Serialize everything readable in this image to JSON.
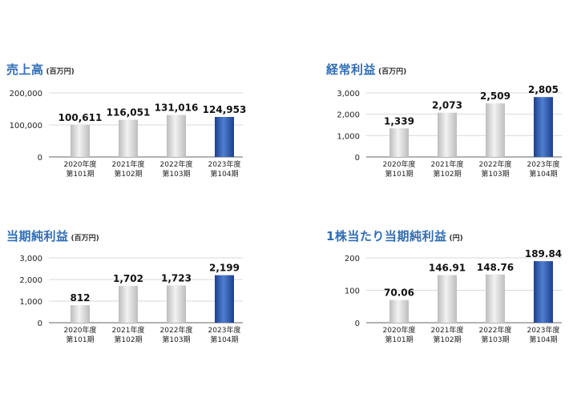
{
  "colors": {
    "title": "#2f6db5",
    "bar_gray_light": "#f2f2f2",
    "bar_gray_dark": "#bdbdbd",
    "bar_blue_light": "#4f7fd0",
    "bar_blue_dark": "#1d3f8e",
    "axis": "#666666",
    "grid": "#d9d9d9"
  },
  "chart_data": [
    {
      "type": "bar",
      "title": "売上高",
      "unit": "(百万円)",
      "categories": [
        "2020年度\n第101期",
        "2021年度\n第102期",
        "2022年度\n第103期",
        "2023年度\n第104期"
      ],
      "values": [
        100611,
        116051,
        131016,
        124953
      ],
      "value_labels": [
        "100,611",
        "116,051",
        "131,016",
        "124,953"
      ],
      "highlight_index": 3,
      "ylim": [
        0,
        200000
      ],
      "yticks": [
        0,
        100000,
        200000
      ],
      "ytick_labels": [
        "0",
        "100,000",
        "200,000"
      ],
      "grid": true
    },
    {
      "type": "bar",
      "title": "経常利益",
      "unit": "(百万円)",
      "categories": [
        "2020年度\n第101期",
        "2021年度\n第102期",
        "2022年度\n第103期",
        "2023年度\n第104期"
      ],
      "values": [
        1339,
        2073,
        2509,
        2805
      ],
      "value_labels": [
        "1,339",
        "2,073",
        "2,509",
        "2,805"
      ],
      "highlight_index": 3,
      "ylim": [
        0,
        3000
      ],
      "yticks": [
        0,
        1000,
        2000,
        3000
      ],
      "ytick_labels": [
        "0",
        "1,000",
        "2,000",
        "3,000"
      ],
      "grid": true
    },
    {
      "type": "bar",
      "title": "当期純利益",
      "unit": "(百万円)",
      "categories": [
        "2020年度\n第101期",
        "2021年度\n第102期",
        "2022年度\n第103期",
        "2023年度\n第104期"
      ],
      "values": [
        812,
        1702,
        1723,
        2199
      ],
      "value_labels": [
        "812",
        "1,702",
        "1,723",
        "2,199"
      ],
      "highlight_index": 3,
      "ylim": [
        0,
        3000
      ],
      "yticks": [
        0,
        1000,
        2000,
        3000
      ],
      "ytick_labels": [
        "0",
        "1,000",
        "2,000",
        "3,000"
      ],
      "grid": true
    },
    {
      "type": "bar",
      "title": "1株当たり当期純利益",
      "unit": "(円)",
      "categories": [
        "2020年度\n第101期",
        "2021年度\n第102期",
        "2022年度\n第103期",
        "2023年度\n第104期"
      ],
      "values": [
        70.06,
        146.91,
        148.76,
        189.84
      ],
      "value_labels": [
        "70.06",
        "146.91",
        "148.76",
        "189.84"
      ],
      "highlight_index": 3,
      "ylim": [
        0,
        200
      ],
      "yticks": [
        0,
        100,
        200
      ],
      "ytick_labels": [
        "0",
        "100",
        "200"
      ],
      "grid": true
    }
  ]
}
